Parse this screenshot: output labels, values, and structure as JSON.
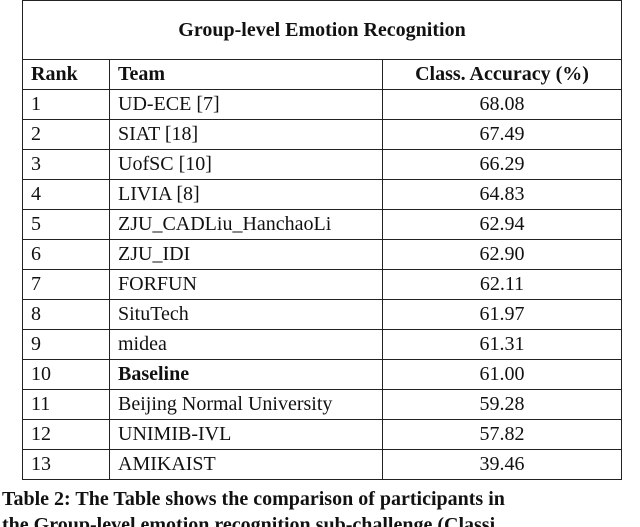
{
  "table": {
    "title": "Group-level Emotion Recognition",
    "header": [
      "Rank",
      "Team",
      "Class. Accuracy (%)"
    ],
    "rows": [
      [
        "1",
        "UD-ECE [7]",
        "68.08"
      ],
      [
        "2",
        "SIAT [18]",
        "67.49"
      ],
      [
        "3",
        "UofSC [10]",
        "66.29"
      ],
      [
        "4",
        "LIVIA [8]",
        "64.83"
      ],
      [
        "5",
        "ZJU_CADLiu_HanchaoLi",
        "62.94"
      ],
      [
        "6",
        "ZJU_IDI",
        "62.90"
      ],
      [
        "7",
        "FORFUN",
        "62.11"
      ],
      [
        "8",
        "SituTech",
        "61.97"
      ],
      [
        "9",
        "midea",
        "61.31"
      ],
      [
        "10",
        "Baseline",
        "61.00"
      ],
      [
        "11",
        "Beijing Normal University",
        "59.28"
      ],
      [
        "12",
        "UNIMIB-IVL",
        "57.82"
      ],
      [
        "13",
        "AMIKAIST",
        "39.46"
      ]
    ]
  },
  "caption": [
    "Table 2: The Table shows the comparison of participants in",
    "the Group-level emotion recognition sub-challenge (Classi"
  ]
}
